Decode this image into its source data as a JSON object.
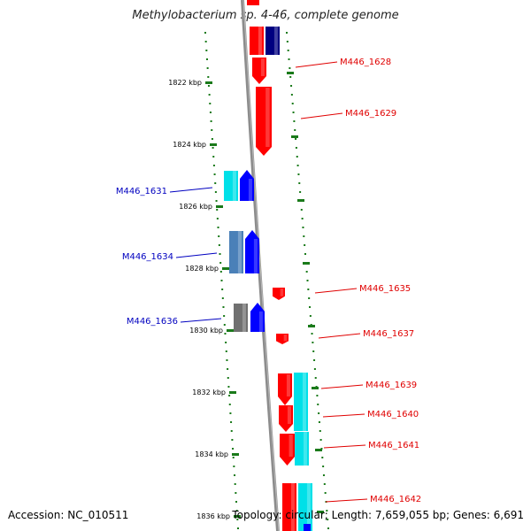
{
  "title": "Methylobacterium sp. 4-46, complete genome",
  "accession": "Accession: NC_010511",
  "summary": "Topology: circular; Length: 7,659,055 bp; Genes: 6,691",
  "colors": {
    "backbone": "#8c8c8c",
    "forward_gene": "#ff0000",
    "reverse_gene": "#0000ff",
    "cyan_gene": "#00e0e8",
    "steelblue_gene": "#4a80b8",
    "grey_gene": "#707070",
    "navy_gene": "#000080",
    "tick": "#1a7a1a",
    "forward_label": "#e00000",
    "reverse_label": "#0000c0"
  },
  "ticks": [
    {
      "label": "1822 kbp"
    },
    {
      "label": "1824 kbp"
    },
    {
      "label": "1826 kbp"
    },
    {
      "label": "1828 kbp"
    },
    {
      "label": "1830 kbp"
    },
    {
      "label": "1832 kbp"
    },
    {
      "label": "1834 kbp"
    },
    {
      "label": "1836 kbp"
    }
  ],
  "genes": [
    {
      "label": "M446_1628",
      "strand": "forward",
      "color": "forward_gene"
    },
    {
      "label": "M446_1629",
      "strand": "forward",
      "color": "forward_gene"
    },
    {
      "label": "M446_1631",
      "strand": "reverse",
      "color": "reverse_gene"
    },
    {
      "label": "M446_1634",
      "strand": "reverse",
      "color": "reverse_gene"
    },
    {
      "label": "M446_1635",
      "strand": "forward",
      "color": "forward_gene"
    },
    {
      "label": "M446_1636",
      "strand": "reverse",
      "color": "reverse_gene"
    },
    {
      "label": "M446_1637",
      "strand": "forward",
      "color": "forward_gene"
    },
    {
      "label": "M446_1639",
      "strand": "forward",
      "color": "forward_gene"
    },
    {
      "label": "M446_1640",
      "strand": "forward",
      "color": "forward_gene"
    },
    {
      "label": "M446_1641",
      "strand": "forward",
      "color": "forward_gene"
    },
    {
      "label": "M446_1642",
      "strand": "forward",
      "color": "forward_gene"
    }
  ]
}
